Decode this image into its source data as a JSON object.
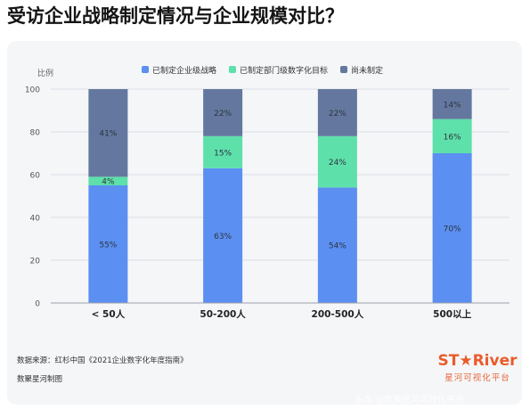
{
  "title": "受访企业战略制定情况与企业规模对比？",
  "colors": {
    "series1": "#5b8ff1",
    "series2": "#5ee0ab",
    "series3": "#64789f",
    "card_bg": "#f5f6f8",
    "brand": "#ea5b2b"
  },
  "chart_data": {
    "type": "bar",
    "stacked": true,
    "categories": [
      "< 50人",
      "50-200人",
      "200-500人",
      "500以上"
    ],
    "series": [
      {
        "name": "已制定企业级战略",
        "values": [
          55,
          63,
          54,
          70
        ],
        "labels": [
          "55%",
          "63%",
          "54%",
          "70%"
        ]
      },
      {
        "name": "已制定部门级数字化目标",
        "values": [
          4,
          15,
          24,
          16
        ],
        "labels": [
          "4%",
          "15%",
          "24%",
          "16%"
        ]
      },
      {
        "name": "尚未制定",
        "values": [
          41,
          22,
          22,
          14
        ],
        "labels": [
          "41%",
          "22%",
          "22%",
          "14%"
        ]
      }
    ],
    "ylabel": "比例",
    "ylim": [
      0,
      100
    ],
    "yticks": [
      0,
      20,
      40,
      60,
      80,
      100
    ],
    "grid": true,
    "legend_position": "top"
  },
  "footer": {
    "source": "数据来源：红杉中国《2021企业数字化年度指南》",
    "maker": "数聚星河制图"
  },
  "brand": {
    "logo": "ST★River",
    "sub": "星河可视化平台"
  },
  "watermark": "头条 @数聚星河可视化平台"
}
